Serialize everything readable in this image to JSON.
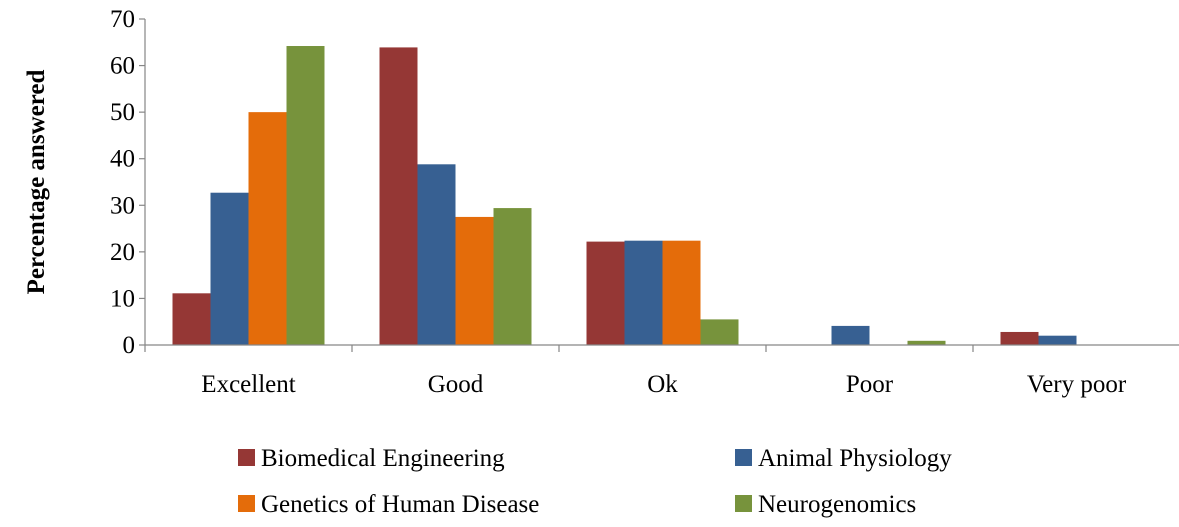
{
  "chart_data": {
    "type": "bar",
    "title": "",
    "xlabel": "",
    "ylabel": "Percentage answered",
    "ylim": [
      0,
      70
    ],
    "yticks": [
      0,
      10,
      20,
      30,
      40,
      50,
      60,
      70
    ],
    "categories": [
      "Excellent",
      "Good",
      "Ok",
      "Poor",
      "Very poor"
    ],
    "series": [
      {
        "name": "Biomedical Engineering",
        "color": "#953735",
        "values": [
          11.1,
          63.9,
          22.2,
          0,
          2.8
        ]
      },
      {
        "name": "Animal Physiology",
        "color": "#376092",
        "values": [
          32.7,
          38.8,
          22.4,
          4.1,
          2.0
        ]
      },
      {
        "name": "Genetics of Human Disease",
        "color": "#E46C0A",
        "values": [
          50.0,
          27.5,
          22.4,
          0,
          0
        ]
      },
      {
        "name": "Neurogenomics",
        "color": "#77933C",
        "values": [
          64.2,
          29.4,
          5.5,
          0.9,
          0
        ]
      }
    ],
    "grid": false,
    "legend_position": "bottom"
  }
}
